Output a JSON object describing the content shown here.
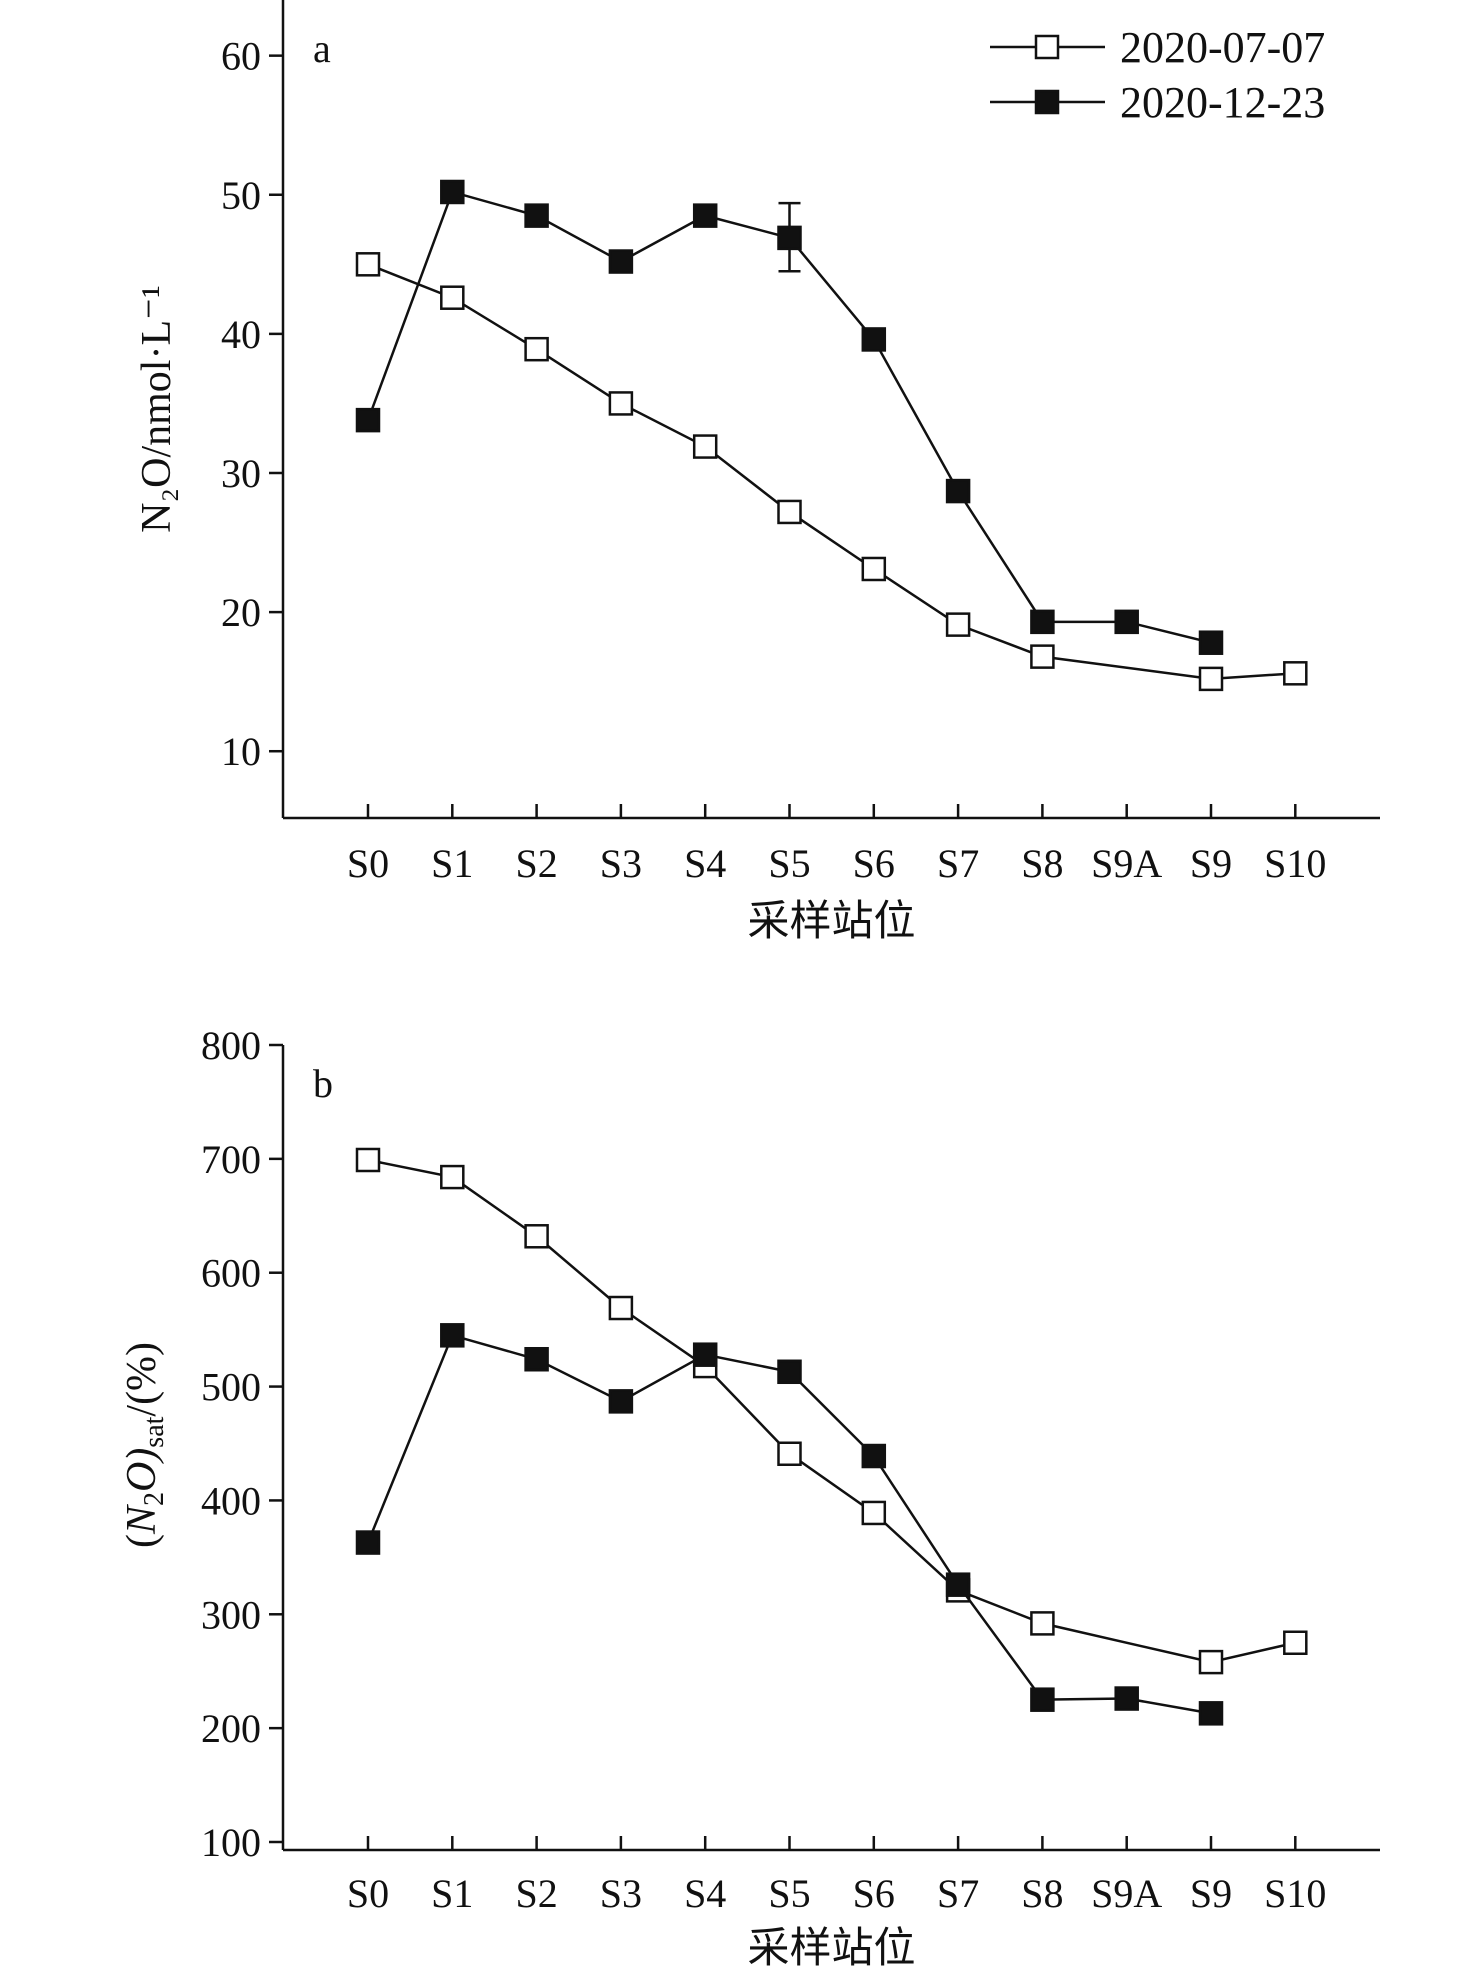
{
  "chart_data": [
    {
      "type": "line",
      "panel_label": "a",
      "categories": [
        "S0",
        "S1",
        "S2",
        "S3",
        "S4",
        "S5",
        "S6",
        "S7",
        "S8",
        "S9A",
        "S9",
        "S10"
      ],
      "ylabel": "N₂O/nmol·L⁻¹",
      "xlabel": "采样站位",
      "yticks": [
        10,
        20,
        30,
        40,
        50,
        60
      ],
      "ylim": [
        5.2,
        64
      ],
      "legend_placement": "top-right",
      "series": [
        {
          "name": "2020-07-07",
          "marker": "open-square",
          "values": [
            45.0,
            42.6,
            38.9,
            35.0,
            31.9,
            27.2,
            23.1,
            19.1,
            16.8,
            null,
            15.2,
            15.6
          ]
        },
        {
          "name": "2020-12-23",
          "marker": "filled-square",
          "values": [
            33.8,
            50.2,
            48.5,
            45.2,
            48.5,
            46.9,
            39.6,
            28.7,
            19.3,
            19.3,
            17.8,
            null
          ],
          "error": {
            "S5": [
              44.5,
              49.4
            ]
          }
        }
      ]
    },
    {
      "type": "line",
      "panel_label": "b",
      "categories": [
        "S0",
        "S1",
        "S2",
        "S3",
        "S4",
        "S5",
        "S6",
        "S7",
        "S8",
        "S9A",
        "S9",
        "S10"
      ],
      "ylabel_parts": {
        "open": "(",
        "main": "N",
        "sub1": "2",
        "main2": "O)",
        "sub2": "sat",
        "tail": "/(%)"
      },
      "xlabel": "采样站位",
      "yticks": [
        100,
        200,
        300,
        400,
        500,
        600,
        700,
        800
      ],
      "ylim": [
        100,
        800
      ],
      "series": [
        {
          "name": "2020-07-07",
          "marker": "open-square",
          "values": [
            699,
            684,
            632,
            569,
            518,
            441,
            389,
            321,
            292,
            null,
            258,
            275
          ]
        },
        {
          "name": "2020-12-23",
          "marker": "filled-square",
          "values": [
            363,
            545,
            524,
            487,
            528,
            513,
            439,
            326,
            225,
            226,
            213,
            null
          ]
        }
      ]
    }
  ]
}
